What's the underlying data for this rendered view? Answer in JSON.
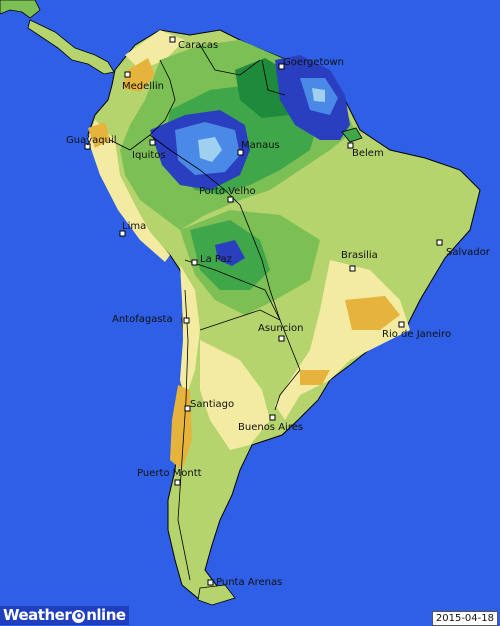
{
  "colors": {
    "ocean": "#2e5fe6",
    "land_dry": "#e6b33c",
    "land_pale": "#f4eba2",
    "land_light_green": "#b5d46e",
    "land_green": "#7cbf54",
    "land_mid_green": "#3fa64a",
    "land_dark_green": "#1e8a3c",
    "wet_blue": "#2a3fbf",
    "wet_mid_blue": "#4a8ae6",
    "wet_light_blue": "#9fd0f0",
    "borders": "#000000"
  },
  "cities": [
    {
      "name": "Caracas"
    },
    {
      "name": "Goergetown"
    },
    {
      "name": "Medellin"
    },
    {
      "name": "Guayaquil"
    },
    {
      "name": "Iquitos"
    },
    {
      "name": "Manaus"
    },
    {
      "name": "Belem"
    },
    {
      "name": "Porto Velho"
    },
    {
      "name": "Lima"
    },
    {
      "name": "Salvador"
    },
    {
      "name": "Brasilia"
    },
    {
      "name": "La Paz"
    },
    {
      "name": "Antofagasta"
    },
    {
      "name": "Asuncion"
    },
    {
      "name": "Rio de Janeiro"
    },
    {
      "name": "Santiago"
    },
    {
      "name": "Buenos Aires"
    },
    {
      "name": "Puerto Montt"
    },
    {
      "name": "Punta Arenas"
    }
  ],
  "footer": {
    "logo_part1": "Weather",
    "logo_o": "O",
    "logo_part2": "nline",
    "date": "2015-04-18"
  }
}
